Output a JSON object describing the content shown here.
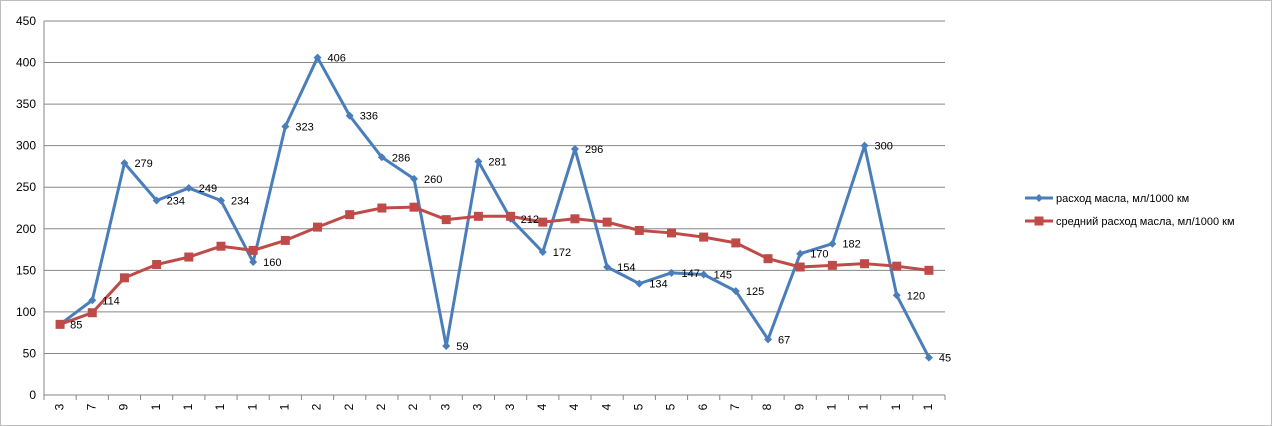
{
  "chart_data": {
    "type": "line",
    "categories": [
      "3",
      "7",
      "9",
      "1",
      "1",
      "1",
      "1",
      "1",
      "2",
      "2",
      "2",
      "2",
      "3",
      "3",
      "3",
      "4",
      "4",
      "4",
      "5",
      "5",
      "6",
      "7",
      "8",
      "9",
      "1",
      "1",
      "1",
      "1"
    ],
    "ylim": [
      0,
      450
    ],
    "yticks": [
      0,
      50,
      100,
      150,
      200,
      250,
      300,
      350,
      400,
      450
    ],
    "grid": true,
    "legend_position": "right",
    "series": [
      {
        "name": "расход масла, мл/1000 км",
        "color": "#4a7ebb",
        "marker": "diamond",
        "values": [
          85,
          114,
          279,
          234,
          249,
          234,
          160,
          323,
          406,
          336,
          286,
          260,
          59,
          281,
          212,
          172,
          296,
          154,
          134,
          147,
          145,
          125,
          67,
          170,
          182,
          300,
          120,
          45
        ],
        "labels": [
          "85",
          "114",
          "279",
          "234",
          "249",
          "234",
          "160",
          "323",
          "406",
          "336",
          "286",
          "260",
          "59",
          "281",
          "212",
          "172",
          "296",
          "154",
          "134",
          "147",
          "145",
          "125",
          "67",
          "170",
          "182",
          "300",
          "120",
          "45"
        ]
      },
      {
        "name": "средний расход масла, мл/1000 км",
        "color": "#be4b48",
        "marker": "square",
        "values": [
          85,
          99,
          141,
          157,
          166,
          179,
          174,
          186,
          202,
          217,
          225,
          226,
          211,
          215,
          215,
          208,
          212,
          208,
          198,
          195,
          190,
          183,
          164,
          154,
          156,
          158,
          155,
          150
        ]
      }
    ]
  }
}
